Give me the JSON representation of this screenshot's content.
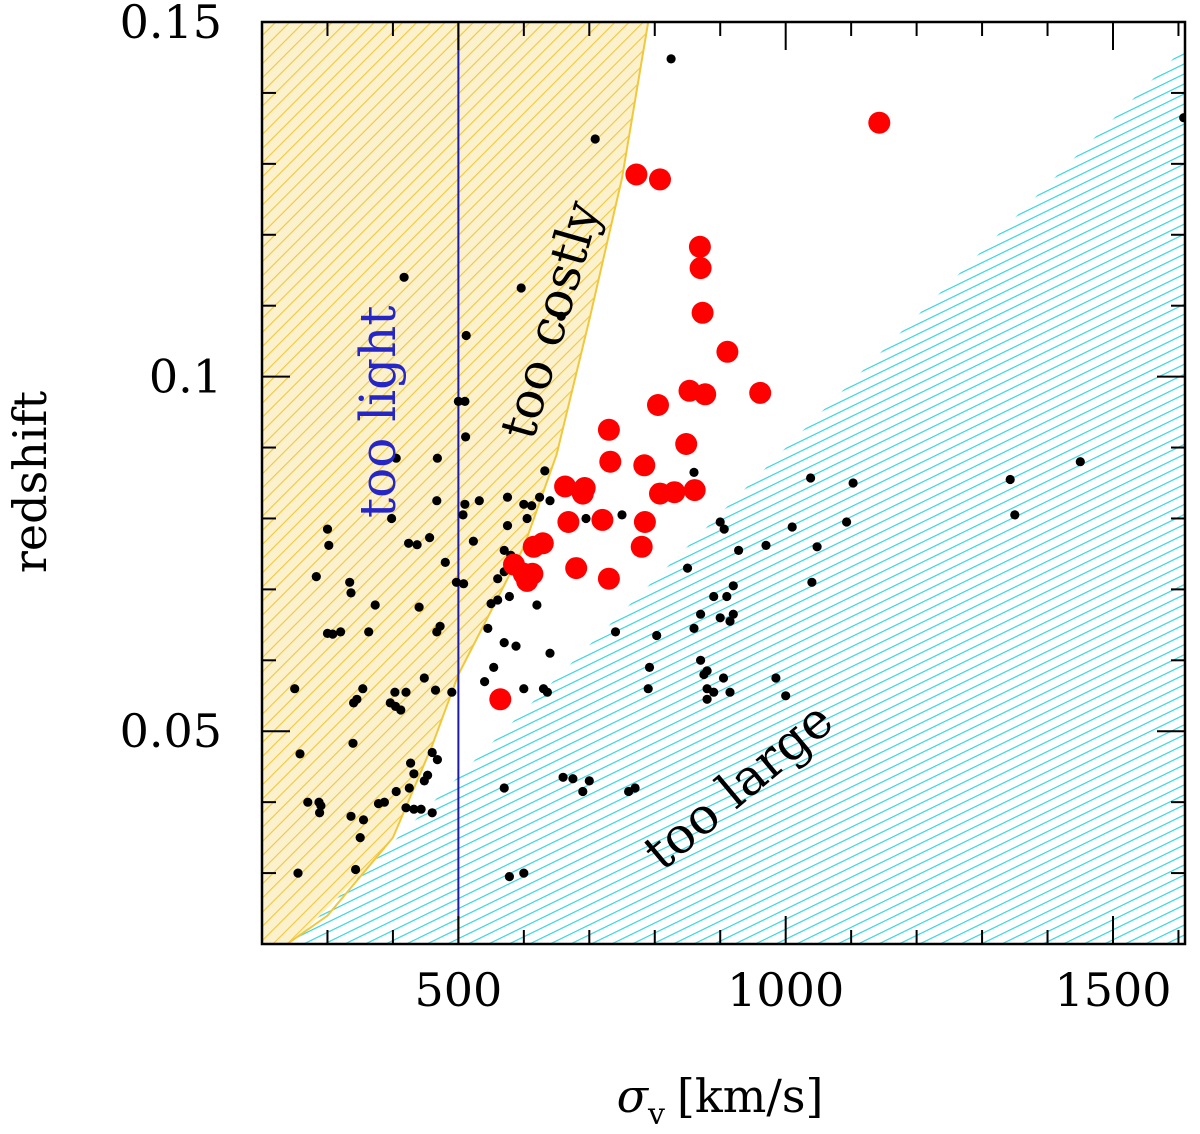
{
  "chart_data": {
    "type": "scatter",
    "xlabel": "σ",
    "xlabel_sub": "v",
    "xlabel_unit": "[km/s]",
    "ylabel": "redshift",
    "xlim": [
      200,
      1610
    ],
    "ylim": [
      0.02,
      0.15
    ],
    "x_ticks": [
      500,
      1000,
      1500
    ],
    "x_tick_labels": [
      "500",
      "1000",
      "1500"
    ],
    "y_ticks": [
      0.05,
      0.1,
      0.15
    ],
    "y_tick_labels": [
      "0.05",
      "0.1",
      "0.15"
    ],
    "x_minor_step": 100,
    "y_minor_step": 0.01,
    "grid": false,
    "legend": "none",
    "colors": {
      "too_light_line": "#1a1aa8",
      "too_light_text": "#2626c8",
      "too_costly_hatch": "#f2c83a",
      "too_costly_fill": "#fbf1cc",
      "too_large_hatch": "#35d5dc",
      "selected_points": "#ff0000",
      "other_points": "#000000"
    },
    "regions": [
      {
        "name": "too light",
        "boundary_x": 500
      },
      {
        "name": "too costly",
        "boundary": [
          [
            200,
            0.0175
          ],
          [
            300,
            0.024
          ],
          [
            400,
            0.035
          ],
          [
            460,
            0.048
          ],
          [
            500,
            0.058
          ],
          [
            550,
            0.067
          ],
          [
            600,
            0.076
          ],
          [
            650,
            0.089
          ],
          [
            700,
            0.108
          ],
          [
            750,
            0.128
          ],
          [
            790,
            0.15
          ]
        ]
      },
      {
        "name": "too large",
        "boundary": [
          [
            240,
            0.0195
          ],
          [
            1610,
            0.1465
          ]
        ]
      }
    ],
    "series": [
      {
        "name": "selected",
        "color": "#ff0000",
        "points": [
          [
            1143,
            0.1358
          ],
          [
            772,
            0.1285
          ],
          [
            808,
            0.1278
          ],
          [
            869,
            0.1183
          ],
          [
            870,
            0.1153
          ],
          [
            873,
            0.109
          ],
          [
            911,
            0.1035
          ],
          [
            961,
            0.0977
          ],
          [
            853,
            0.098
          ],
          [
            877,
            0.0975
          ],
          [
            805,
            0.096
          ],
          [
            730,
            0.0925
          ],
          [
            848,
            0.0905
          ],
          [
            732,
            0.088
          ],
          [
            784,
            0.0875
          ],
          [
            663,
            0.0845
          ],
          [
            693,
            0.0843
          ],
          [
            690,
            0.0835
          ],
          [
            861,
            0.084
          ],
          [
            808,
            0.0835
          ],
          [
            830,
            0.0837
          ],
          [
            668,
            0.0795
          ],
          [
            720,
            0.0798
          ],
          [
            785,
            0.0795
          ],
          [
            629,
            0.0765
          ],
          [
            615,
            0.076
          ],
          [
            780,
            0.076
          ],
          [
            585,
            0.0735
          ],
          [
            600,
            0.0722
          ],
          [
            613,
            0.0722
          ],
          [
            605,
            0.0712
          ],
          [
            680,
            0.073
          ],
          [
            730,
            0.0715
          ],
          [
            564,
            0.0545
          ]
        ]
      },
      {
        "name": "other",
        "color": "#000000",
        "points": [
          [
            825,
            0.1448
          ],
          [
            1608,
            0.1365
          ],
          [
            709,
            0.1335
          ],
          [
            417,
            0.114
          ],
          [
            596,
            0.1125
          ],
          [
            657,
            0.1085
          ],
          [
            512,
            0.1058
          ],
          [
            500,
            0.0965
          ],
          [
            510,
            0.0965
          ],
          [
            511,
            0.0915
          ],
          [
            405,
            0.0885
          ],
          [
            468,
            0.0885
          ],
          [
            632,
            0.0867
          ],
          [
            860,
            0.0865
          ],
          [
            1038,
            0.0857
          ],
          [
            1103,
            0.085
          ],
          [
            1343,
            0.0855
          ],
          [
            1450,
            0.088
          ],
          [
            467,
            0.0825
          ],
          [
            510,
            0.082
          ],
          [
            532,
            0.0825
          ],
          [
            575,
            0.083
          ],
          [
            600,
            0.082
          ],
          [
            612,
            0.0818
          ],
          [
            624,
            0.083
          ],
          [
            640,
            0.0825
          ],
          [
            695,
            0.08
          ],
          [
            750,
            0.0805
          ],
          [
            900,
            0.0795
          ],
          [
            1010,
            0.0788
          ],
          [
            1093,
            0.0795
          ],
          [
            1350,
            0.0805
          ],
          [
            398,
            0.08
          ],
          [
            507,
            0.0805
          ],
          [
            300,
            0.0785
          ],
          [
            575,
            0.079
          ],
          [
            605,
            0.08
          ],
          [
            906,
            0.0785
          ],
          [
            570,
            0.0755
          ],
          [
            424,
            0.0765
          ],
          [
            437,
            0.0763
          ],
          [
            456,
            0.0773
          ],
          [
            523,
            0.0768
          ],
          [
            1048,
            0.076
          ],
          [
            928,
            0.0755
          ],
          [
            970,
            0.0762
          ],
          [
            580,
            0.0748
          ],
          [
            302,
            0.0762
          ],
          [
            480,
            0.0738
          ],
          [
            283,
            0.0718
          ],
          [
            560,
            0.0715
          ],
          [
            570,
            0.0725
          ],
          [
            497,
            0.071
          ],
          [
            508,
            0.0708
          ],
          [
            334,
            0.071
          ],
          [
            336,
            0.0695
          ],
          [
            560,
            0.0685
          ],
          [
            920,
            0.0705
          ],
          [
            850,
            0.073
          ],
          [
            1040,
            0.071
          ],
          [
            373,
            0.0678
          ],
          [
            440,
            0.0675
          ],
          [
            550,
            0.068
          ],
          [
            578,
            0.069
          ],
          [
            620,
            0.0678
          ],
          [
            890,
            0.069
          ],
          [
            910,
            0.069
          ],
          [
            920,
            0.0665
          ],
          [
            472,
            0.0648
          ],
          [
            300,
            0.0638
          ],
          [
            308,
            0.0637
          ],
          [
            320,
            0.064
          ],
          [
            363,
            0.064
          ],
          [
            467,
            0.064
          ],
          [
            545,
            0.0645
          ],
          [
            740,
            0.064
          ],
          [
            860,
            0.0645
          ],
          [
            870,
            0.0665
          ],
          [
            900,
            0.066
          ],
          [
            915,
            0.0655
          ],
          [
            570,
            0.0625
          ],
          [
            588,
            0.062
          ],
          [
            640,
            0.061
          ],
          [
            803,
            0.0635
          ],
          [
            870,
            0.06
          ],
          [
            880,
            0.0585
          ],
          [
            905,
            0.0575
          ],
          [
            985,
            0.0575
          ],
          [
            792,
            0.059
          ],
          [
            540,
            0.057
          ],
          [
            465,
            0.0558
          ],
          [
            448,
            0.0575
          ],
          [
            490,
            0.0555
          ],
          [
            554,
            0.059
          ],
          [
            600,
            0.056
          ],
          [
            630,
            0.056
          ],
          [
            636,
            0.0555
          ],
          [
            403,
            0.0555
          ],
          [
            420,
            0.0555
          ],
          [
            340,
            0.054
          ],
          [
            345,
            0.0545
          ],
          [
            354,
            0.056
          ],
          [
            404,
            0.0535
          ],
          [
            412,
            0.053
          ],
          [
            396,
            0.054
          ],
          [
            790,
            0.056
          ],
          [
            915,
            0.0555
          ],
          [
            1000,
            0.055
          ],
          [
            875,
            0.058
          ],
          [
            880,
            0.056
          ],
          [
            880,
            0.0545
          ],
          [
            890,
            0.0555
          ],
          [
            258,
            0.0468
          ],
          [
            339,
            0.0483
          ],
          [
            460,
            0.047
          ],
          [
            468,
            0.046
          ],
          [
            427,
            0.0455
          ],
          [
            432,
            0.044
          ],
          [
            453,
            0.0438
          ],
          [
            448,
            0.043
          ],
          [
            425,
            0.042
          ],
          [
            405,
            0.0415
          ],
          [
            387,
            0.04
          ],
          [
            378,
            0.0398
          ],
          [
            420,
            0.0392
          ],
          [
            432,
            0.039
          ],
          [
            443,
            0.039
          ],
          [
            460,
            0.0385
          ],
          [
            287,
            0.04
          ],
          [
            290,
            0.0395
          ],
          [
            336,
            0.038
          ],
          [
            288,
            0.0385
          ],
          [
            355,
            0.0375
          ],
          [
            570,
            0.042
          ],
          [
            660,
            0.0435
          ],
          [
            675,
            0.0433
          ],
          [
            700,
            0.043
          ],
          [
            690,
            0.0415
          ],
          [
            760,
            0.0415
          ],
          [
            770,
            0.042
          ],
          [
            350,
            0.035
          ],
          [
            343,
            0.0305
          ],
          [
            578,
            0.0295
          ],
          [
            600,
            0.03
          ],
          [
            255,
            0.03
          ],
          [
            270,
            0.04
          ],
          [
            250,
            0.056
          ]
        ]
      }
    ]
  }
}
